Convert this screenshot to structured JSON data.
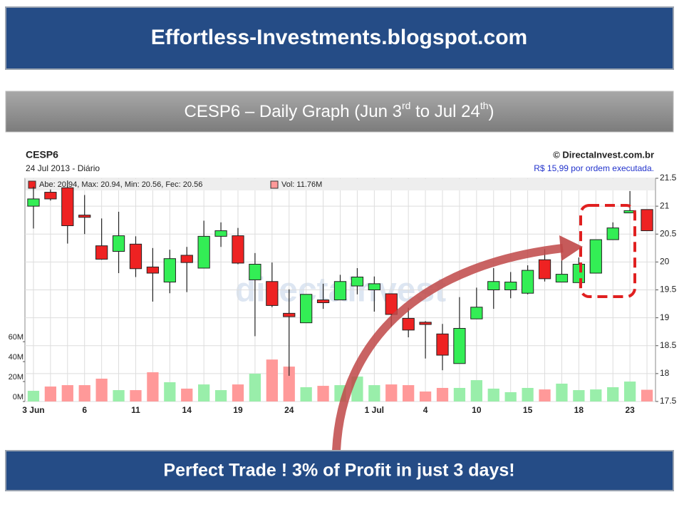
{
  "header": {
    "title": "Effortless-Investments.blogspot.com"
  },
  "subtitle": [
    "CESP6 – Daily Graph (Jun 3",
    "rd",
    " to Jul 24",
    "th",
    ")"
  ],
  "footer": {
    "text": "Perfect Trade ! 3% of Profit in just 3 days!"
  },
  "chart_data": {
    "type": "candlestick",
    "title": "CESP6",
    "subtitle": "24 Jul 2013 - Diário",
    "source": "© DirectaInvest.com.br",
    "source_note": "R$ 15,99 por ordem executada.",
    "watermark": "directainvest",
    "legend": [
      "Abe: 20.94, Max: 20.94, Min: 20.56, Fec: 20.56",
      "Vol: 11.76M"
    ],
    "categories": [
      "3 Jun",
      null,
      null,
      "6",
      null,
      null,
      "11",
      null,
      null,
      "14",
      null,
      null,
      "19",
      null,
      null,
      "24",
      null,
      null,
      null,
      null,
      "1 Jul",
      null,
      null,
      "4",
      null,
      null,
      "10",
      null,
      null,
      "15",
      null,
      null,
      "18",
      null,
      null,
      "23",
      null
    ],
    "open": [
      21.0,
      21.25,
      21.33,
      20.84,
      20.29,
      20.19,
      20.32,
      19.91,
      19.64,
      20.12,
      19.89,
      20.46,
      20.47,
      19.68,
      19.65,
      19.08,
      18.91,
      19.32,
      19.32,
      19.57,
      19.5,
      19.43,
      18.99,
      18.92,
      18.71,
      18.18,
      18.98,
      19.5,
      19.5,
      19.44,
      20.04,
      19.64,
      19.63,
      19.8,
      20.4,
      20.88,
      20.94
    ],
    "high": [
      21.35,
      21.3,
      21.46,
      21.2,
      20.78,
      20.9,
      20.46,
      20.25,
      20.22,
      20.27,
      20.74,
      20.71,
      20.61,
      20.16,
      19.99,
      19.51,
      19.42,
      19.61,
      19.77,
      19.89,
      19.74,
      19.43,
      19.18,
      18.94,
      18.89,
      19.37,
      19.54,
      19.89,
      19.82,
      19.94,
      20.23,
      20.12,
      20.08,
      20.4,
      20.71,
      21.27,
      20.94
    ],
    "low": [
      20.6,
      21.1,
      20.33,
      20.5,
      20.04,
      19.8,
      19.73,
      19.29,
      19.44,
      19.46,
      19.89,
      20.27,
      19.96,
      18.67,
      19.19,
      17.96,
      18.91,
      19.16,
      19.32,
      19.42,
      19.11,
      18.84,
      18.65,
      18.27,
      18.06,
      18.18,
      18.98,
      19.16,
      19.35,
      19.42,
      19.65,
      19.64,
      19.63,
      19.8,
      20.4,
      20.88,
      20.56
    ],
    "close": [
      21.13,
      21.13,
      20.65,
      20.8,
      20.05,
      20.47,
      19.88,
      19.8,
      20.06,
      19.99,
      20.46,
      20.56,
      19.98,
      19.96,
      19.22,
      19.02,
      19.42,
      19.27,
      19.65,
      19.73,
      19.61,
      19.06,
      18.78,
      18.88,
      18.33,
      18.81,
      19.19,
      19.65,
      19.64,
      19.85,
      19.7,
      19.78,
      19.96,
      20.4,
      20.61,
      20.92,
      20.56
    ],
    "volume": [
      10.7,
      15,
      16.4,
      16.4,
      22.9,
      11.4,
      11.4,
      29.3,
      19.3,
      12.9,
      17.1,
      11.4,
      17.1,
      27.9,
      42.1,
      35,
      14.3,
      15.7,
      16.4,
      25,
      16.4,
      17.1,
      16.4,
      10,
      13.6,
      13.6,
      21.4,
      12.9,
      9.3,
      13.6,
      12.1,
      17.9,
      11.4,
      12.1,
      14.3,
      20,
      11.76
    ],
    "up_color": "#33ee55",
    "down_color": "#ee2222",
    "up_volume_color": "#99eeaa",
    "down_volume_color": "#ff9999",
    "ylim": [
      17.5,
      21.5
    ],
    "yticks": [
      17.5,
      18,
      18.5,
      19,
      19.5,
      20,
      20.5,
      21,
      21.5
    ],
    "y2lim": [
      0,
      224
    ],
    "y2ticks": [
      {
        "value": 0,
        "label": "0M"
      },
      {
        "value": 20,
        "label": "20M"
      },
      {
        "value": 40,
        "label": "40M"
      },
      {
        "value": 60,
        "label": "60M"
      }
    ],
    "grid": true
  }
}
